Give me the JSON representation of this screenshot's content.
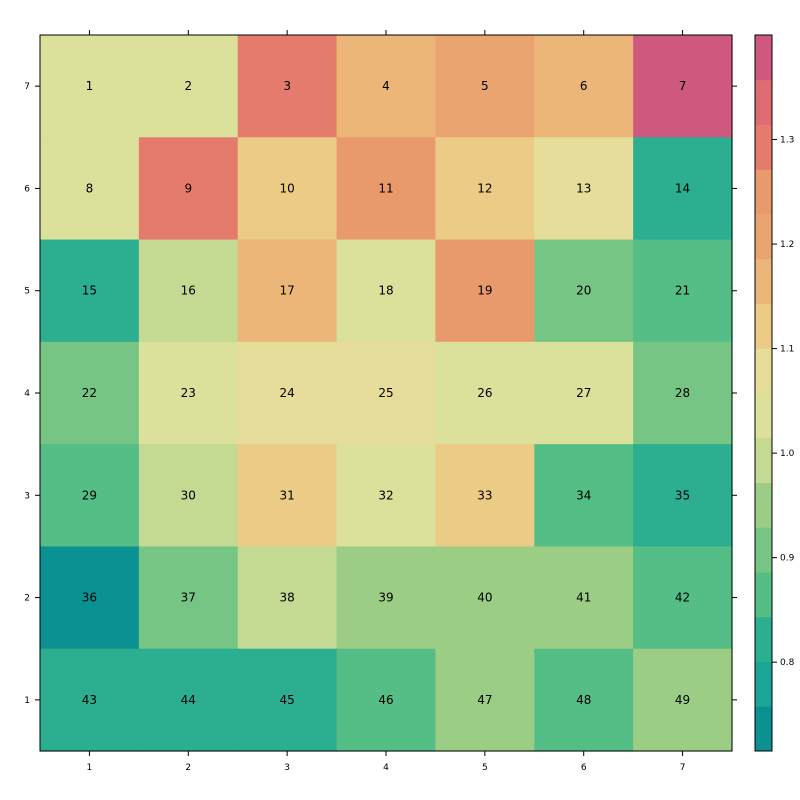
{
  "chart_data": {
    "type": "heatmap",
    "title": "",
    "xlabel": "",
    "ylabel": "",
    "x_ticks": [
      "1",
      "2",
      "3",
      "4",
      "5",
      "6",
      "7"
    ],
    "y_ticks": [
      "1",
      "2",
      "3",
      "4",
      "5",
      "6",
      "7"
    ],
    "rows": [
      {
        "y": 7,
        "cells": [
          {
            "label": "1",
            "value": 1.02
          },
          {
            "label": "2",
            "value": 1.02
          },
          {
            "label": "3",
            "value": 1.31
          },
          {
            "label": "4",
            "value": 1.19
          },
          {
            "label": "5",
            "value": 1.24
          },
          {
            "label": "6",
            "value": 1.19
          },
          {
            "label": "7",
            "value": 1.38
          }
        ]
      },
      {
        "y": 6,
        "cells": [
          {
            "label": "8",
            "value": 1.02
          },
          {
            "label": "9",
            "value": 1.31
          },
          {
            "label": "10",
            "value": 1.14
          },
          {
            "label": "11",
            "value": 1.26
          },
          {
            "label": "12",
            "value": 1.14
          },
          {
            "label": "13",
            "value": 1.07
          },
          {
            "label": "14",
            "value": 0.81
          }
        ]
      },
      {
        "y": 5,
        "cells": [
          {
            "label": "15",
            "value": 0.81
          },
          {
            "label": "16",
            "value": 0.98
          },
          {
            "label": "17",
            "value": 1.19
          },
          {
            "label": "18",
            "value": 1.02
          },
          {
            "label": "19",
            "value": 1.26
          },
          {
            "label": "20",
            "value": 0.9
          },
          {
            "label": "21",
            "value": 0.86
          }
        ]
      },
      {
        "y": 4,
        "cells": [
          {
            "label": "22",
            "value": 0.9
          },
          {
            "label": "23",
            "value": 1.05
          },
          {
            "label": "24",
            "value": 1.07
          },
          {
            "label": "25",
            "value": 1.07
          },
          {
            "label": "26",
            "value": 1.02
          },
          {
            "label": "27",
            "value": 1.02
          },
          {
            "label": "28",
            "value": 0.9
          }
        ]
      },
      {
        "y": 3,
        "cells": [
          {
            "label": "29",
            "value": 0.86
          },
          {
            "label": "30",
            "value": 0.98
          },
          {
            "label": "31",
            "value": 1.14
          },
          {
            "label": "32",
            "value": 1.02
          },
          {
            "label": "33",
            "value": 1.14
          },
          {
            "label": "34",
            "value": 0.86
          },
          {
            "label": "35",
            "value": 0.81
          }
        ]
      },
      {
        "y": 2,
        "cells": [
          {
            "label": "36",
            "value": 0.74
          },
          {
            "label": "37",
            "value": 0.9
          },
          {
            "label": "38",
            "value": 0.98
          },
          {
            "label": "39",
            "value": 0.95
          },
          {
            "label": "40",
            "value": 0.95
          },
          {
            "label": "41",
            "value": 0.95
          },
          {
            "label": "42",
            "value": 0.86
          }
        ]
      },
      {
        "y": 1,
        "cells": [
          {
            "label": "43",
            "value": 0.81
          },
          {
            "label": "44",
            "value": 0.81
          },
          {
            "label": "45",
            "value": 0.81
          },
          {
            "label": "46",
            "value": 0.86
          },
          {
            "label": "47",
            "value": 0.95
          },
          {
            "label": "48",
            "value": 0.86
          },
          {
            "label": "49",
            "value": 0.95
          }
        ]
      }
    ],
    "colorbar": {
      "range": [
        0.715,
        1.4
      ],
      "ticks": [
        0.8,
        0.9,
        1.0,
        1.1,
        1.2,
        1.3
      ],
      "tick_labels": [
        "0.8",
        "0.9",
        "1.0",
        "1.1",
        "1.2",
        "1.3"
      ],
      "bins": [
        {
          "from": 0.715,
          "to": 0.765,
          "color": "#0b9192"
        },
        {
          "from": 0.765,
          "to": 0.815,
          "color": "#1aa596"
        },
        {
          "from": 0.815,
          "to": 0.865,
          "color": "#2cae90"
        },
        {
          "from": 0.865,
          "to": 0.915,
          "color": "#55bd86"
        },
        {
          "from": 0.915,
          "to": 0.965,
          "color": "#77c584"
        },
        {
          "from": 0.965,
          "to": 1.015,
          "color": "#9ccd85"
        },
        {
          "from": 1.015,
          "to": 1.065,
          "color": "#c4d992"
        },
        {
          "from": 1.065,
          "to": 1.115,
          "color": "#dbe09b"
        },
        {
          "from": 1.115,
          "to": 1.165,
          "color": "#eadd96"
        },
        {
          "from": 1.165,
          "to": 1.215,
          "color": "#ebca86"
        },
        {
          "from": 1.215,
          "to": 1.265,
          "color": "#eeb678"
        },
        {
          "from": 1.265,
          "to": 1.315,
          "color": "#eea470"
        },
        {
          "from": 1.315,
          "to": 1.365,
          "color": "#e99a6c"
        },
        {
          "from": 1.365,
          "to": 1.4,
          "color": "#e57b6c"
        }
      ]
    },
    "cell_colors": {
      "1": "#dbe09b",
      "2": "#dbe09b",
      "3": "#e57b6c",
      "4": "#ebb678",
      "5": "#eaa470",
      "6": "#ebb678",
      "7": "#cf587f",
      "8": "#dbe09b",
      "9": "#e57b6c",
      "10": "#eccb86",
      "11": "#e99a6c",
      "12": "#eccb86",
      "13": "#e5dd99",
      "14": "#2cae90",
      "15": "#2cae90",
      "16": "#c4d992",
      "17": "#ebb678",
      "18": "#dbe09b",
      "19": "#e99a6c",
      "20": "#77c584",
      "21": "#55bd86",
      "22": "#77c584",
      "23": "#dbe09b",
      "24": "#e5dd99",
      "25": "#e5dd99",
      "26": "#dbe09b",
      "27": "#dbe09b",
      "28": "#77c584",
      "29": "#55bd86",
      "30": "#c4d992",
      "31": "#eccb86",
      "32": "#dbe09b",
      "33": "#eccb86",
      "34": "#55bd86",
      "35": "#2cae90",
      "36": "#0b9192",
      "37": "#77c584",
      "38": "#c4d992",
      "39": "#9ccd85",
      "40": "#9ccd85",
      "41": "#9ccd85",
      "42": "#55bd86",
      "43": "#2cae90",
      "44": "#2cae90",
      "45": "#2cae90",
      "46": "#55bd86",
      "47": "#9ccd85",
      "48": "#55bd86",
      "49": "#9ccd85"
    },
    "colorbar_colors_bottom_to_top": [
      "#0b9192",
      "#1aa596",
      "#2cae90",
      "#55bd86",
      "#77c584",
      "#9ccd85",
      "#c4d992",
      "#dbe09b",
      "#e5dd99",
      "#eccb86",
      "#ebb678",
      "#eaa470",
      "#e99a6c",
      "#e57b6c",
      "#e06c73",
      "#cf587f"
    ],
    "grid": false,
    "legend": "colorbar-right"
  }
}
